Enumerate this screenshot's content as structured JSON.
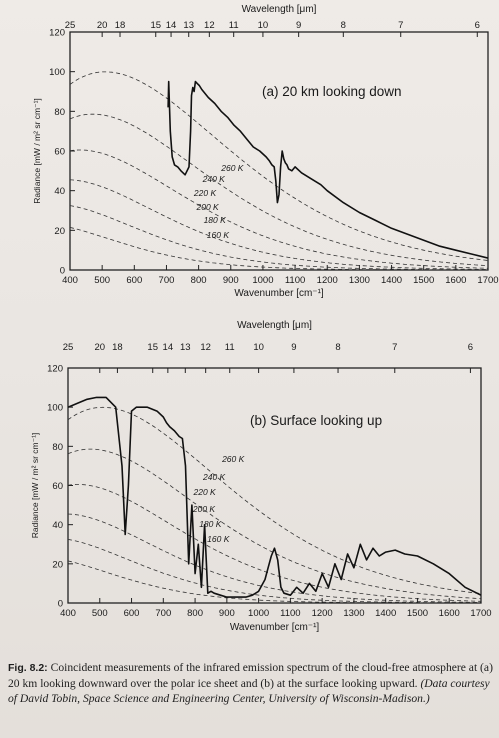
{
  "caption": {
    "label": "Fig. 8.2:",
    "text": "Coincident measurements of the infrared emission spectrum of the cloud-free atmosphere at (a) 20 km looking downward over the polar ice sheet and (b) at the surface looking upward.",
    "credit": "(Data courtesy of David Tobin, Space Science and Engineering Center, University of Wisconsin-Madison.)"
  },
  "chart_data": [
    {
      "type": "line",
      "title": "(a)  20 km looking down",
      "xlabel": "Wavenumber [cm⁻¹]",
      "ylabel": "Radiance [mW / m² sr cm⁻¹]",
      "top_axis_label": "Wavelength [μm]",
      "xlim": [
        400,
        1700
      ],
      "ylim": [
        0,
        120
      ],
      "x_ticks": [
        400,
        500,
        600,
        700,
        800,
        900,
        1000,
        1100,
        1200,
        1300,
        1400,
        1500,
        1600,
        1700
      ],
      "y_ticks": [
        0,
        20,
        40,
        60,
        80,
        100,
        120
      ],
      "top_ticks": [
        25,
        20,
        18,
        15,
        14,
        13,
        12,
        11,
        10,
        9,
        8,
        7,
        6
      ],
      "blackbody_curves_K": [
        160,
        180,
        200,
        220,
        240,
        260
      ],
      "curve_labels": [
        "160 K",
        "180 K",
        "200 K",
        "220 K",
        "240 K",
        "260 K"
      ],
      "spectrum": {
        "x": [
          705,
          707,
          712,
          718,
          725,
          735,
          745,
          758,
          770,
          775,
          778,
          782,
          786,
          790,
          796,
          802,
          810,
          830,
          850,
          870,
          890,
          910,
          930,
          950,
          970,
          990,
          1010,
          1020,
          1028,
          1035,
          1040,
          1045,
          1050,
          1055,
          1060,
          1065,
          1070,
          1075,
          1080,
          1090,
          1100,
          1120,
          1150,
          1180,
          1200,
          1250,
          1300,
          1350,
          1400,
          1450,
          1500,
          1550,
          1600,
          1650,
          1700
        ],
        "y": [
          82,
          95,
          70,
          57,
          53,
          52,
          50,
          48,
          52,
          70,
          88,
          92,
          90,
          95,
          94,
          93,
          91,
          87,
          84,
          80,
          77,
          73,
          70,
          66,
          62,
          60,
          57,
          55,
          53,
          52,
          45,
          34,
          38,
          52,
          60,
          56,
          54,
          53,
          51,
          50,
          52,
          49,
          46,
          43,
          40,
          34,
          29,
          25,
          21,
          18,
          15,
          12,
          10,
          8,
          6
        ]
      }
    },
    {
      "type": "line",
      "title": "(b) Surface looking up",
      "xlabel": "Wavenumber [cm⁻¹]",
      "ylabel": "Radiance [mW / m² sr cm⁻¹]",
      "top_axis_label": "Wavelength [μm]",
      "xlim": [
        400,
        1700
      ],
      "ylim": [
        0,
        120
      ],
      "x_ticks": [
        400,
        500,
        600,
        700,
        800,
        900,
        1000,
        1100,
        1200,
        1300,
        1400,
        1500,
        1600,
        1700
      ],
      "y_ticks": [
        0,
        20,
        40,
        60,
        80,
        100,
        120
      ],
      "top_ticks": [
        25,
        20,
        18,
        15,
        14,
        13,
        12,
        11,
        10,
        9,
        8,
        7,
        6
      ],
      "blackbody_curves_K": [
        160,
        180,
        200,
        220,
        240,
        260
      ],
      "curve_labels": [
        "160 K",
        "180 K",
        "200 K",
        "220 K",
        "240 K",
        "260 K"
      ],
      "spectrum": {
        "x": [
          400,
          430,
          460,
          490,
          520,
          550,
          570,
          580,
          590,
          600,
          615,
          630,
          650,
          680,
          700,
          710,
          720,
          735,
          750,
          760,
          770,
          780,
          790,
          800,
          810,
          820,
          830,
          840,
          850,
          860,
          880,
          900,
          920,
          940,
          960,
          980,
          1000,
          1020,
          1030,
          1040,
          1050,
          1060,
          1070,
          1080,
          1100,
          1120,
          1140,
          1160,
          1180,
          1200,
          1220,
          1240,
          1260,
          1280,
          1300,
          1320,
          1340,
          1360,
          1380,
          1400,
          1430,
          1460,
          1500,
          1550,
          1600,
          1650,
          1700
        ],
        "y": [
          100,
          102,
          104,
          105,
          105,
          100,
          70,
          35,
          60,
          98,
          100,
          100,
          100,
          98,
          95,
          92,
          90,
          88,
          85,
          84,
          70,
          20,
          50,
          15,
          30,
          8,
          40,
          5,
          6,
          5,
          4,
          3,
          3,
          3,
          3,
          4,
          6,
          12,
          18,
          24,
          28,
          22,
          8,
          5,
          4,
          8,
          5,
          10,
          6,
          15,
          8,
          20,
          12,
          25,
          18,
          30,
          22,
          28,
          24,
          26,
          27,
          25,
          24,
          20,
          15,
          8,
          4
        ]
      }
    }
  ]
}
